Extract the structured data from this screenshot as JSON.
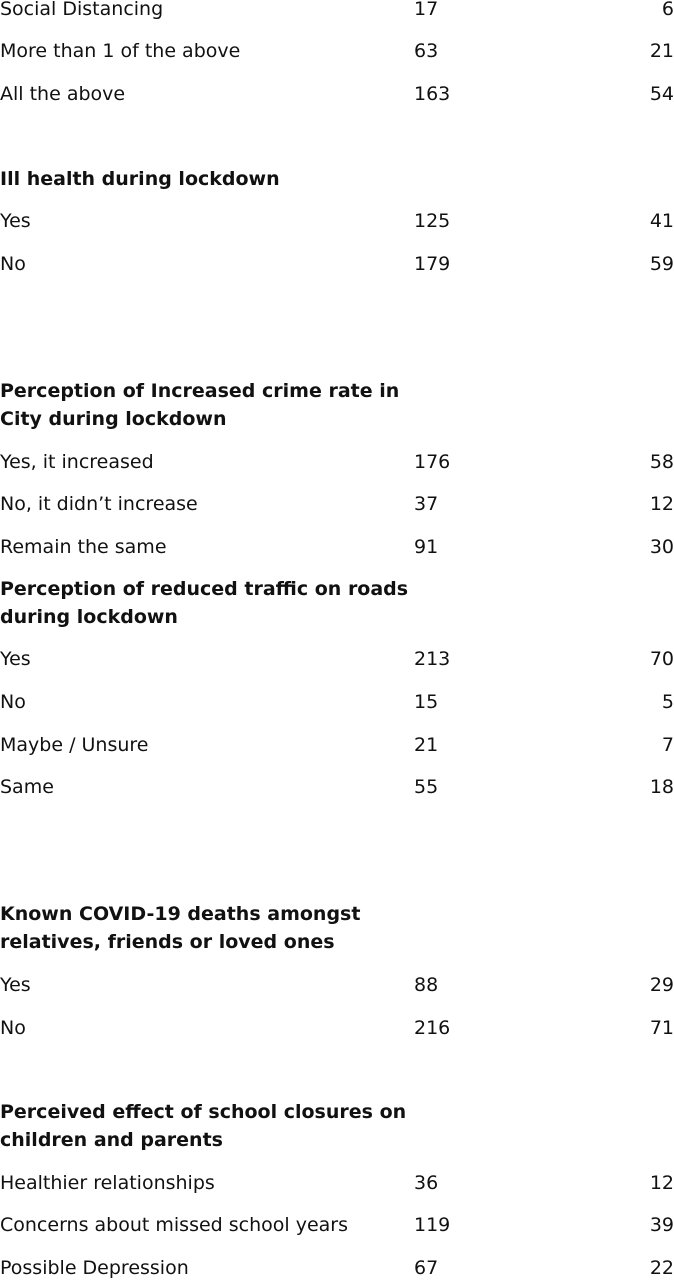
{
  "rows_top": [
    {
      "label": "Social Distancing",
      "count": "17",
      "pct": "6"
    },
    {
      "label": "More than 1 of the above",
      "count": "63",
      "pct": "21"
    },
    {
      "label": "All the above",
      "count": "163",
      "pct": "54"
    }
  ],
  "ill_health": {
    "heading": "Ill health during lockdown",
    "rows": [
      {
        "label": "Yes",
        "count": "125",
        "pct": "41"
      },
      {
        "label": "No",
        "count": "179",
        "pct": "59"
      }
    ]
  },
  "crime": {
    "heading_line1": "Perception of Increased crime rate in",
    "heading_line2": "City during lockdown",
    "rows": [
      {
        "label": "Yes, it increased",
        "count": "176",
        "pct": "58"
      },
      {
        "label": "No, it didn’t increase",
        "count": "37",
        "pct": "12"
      },
      {
        "label": "Remain the same",
        "count": "91",
        "pct": "30"
      }
    ]
  },
  "traffic": {
    "heading_line1": "Perception of reduced traffic on roads",
    "heading_line2": "during lockdown",
    "rows": [
      {
        "label": "Yes",
        "count": "213",
        "pct": "70"
      },
      {
        "label": "No",
        "count": "15",
        "pct": "5"
      },
      {
        "label": "Maybe / Unsure",
        "count": "21",
        "pct": "7"
      },
      {
        "label": "Same",
        "count": "55",
        "pct": "18"
      }
    ]
  },
  "deaths": {
    "heading_line1": "Known COVID-19 deaths amongst",
    "heading_line2": "relatives, friends or loved ones",
    "rows": [
      {
        "label": "Yes",
        "count": "88",
        "pct": "29"
      },
      {
        "label": "No",
        "count": "216",
        "pct": "71"
      }
    ]
  },
  "school": {
    "heading_line1": "Perceived effect of school closures on",
    "heading_line2": "children and parents",
    "rows": [
      {
        "label": "Healthier relationships",
        "count": "36",
        "pct": "12"
      },
      {
        "label": "Concerns about missed school years",
        "count": "119",
        "pct": "39"
      },
      {
        "label": "Possible Depression",
        "count": "67",
        "pct": "22"
      }
    ]
  }
}
